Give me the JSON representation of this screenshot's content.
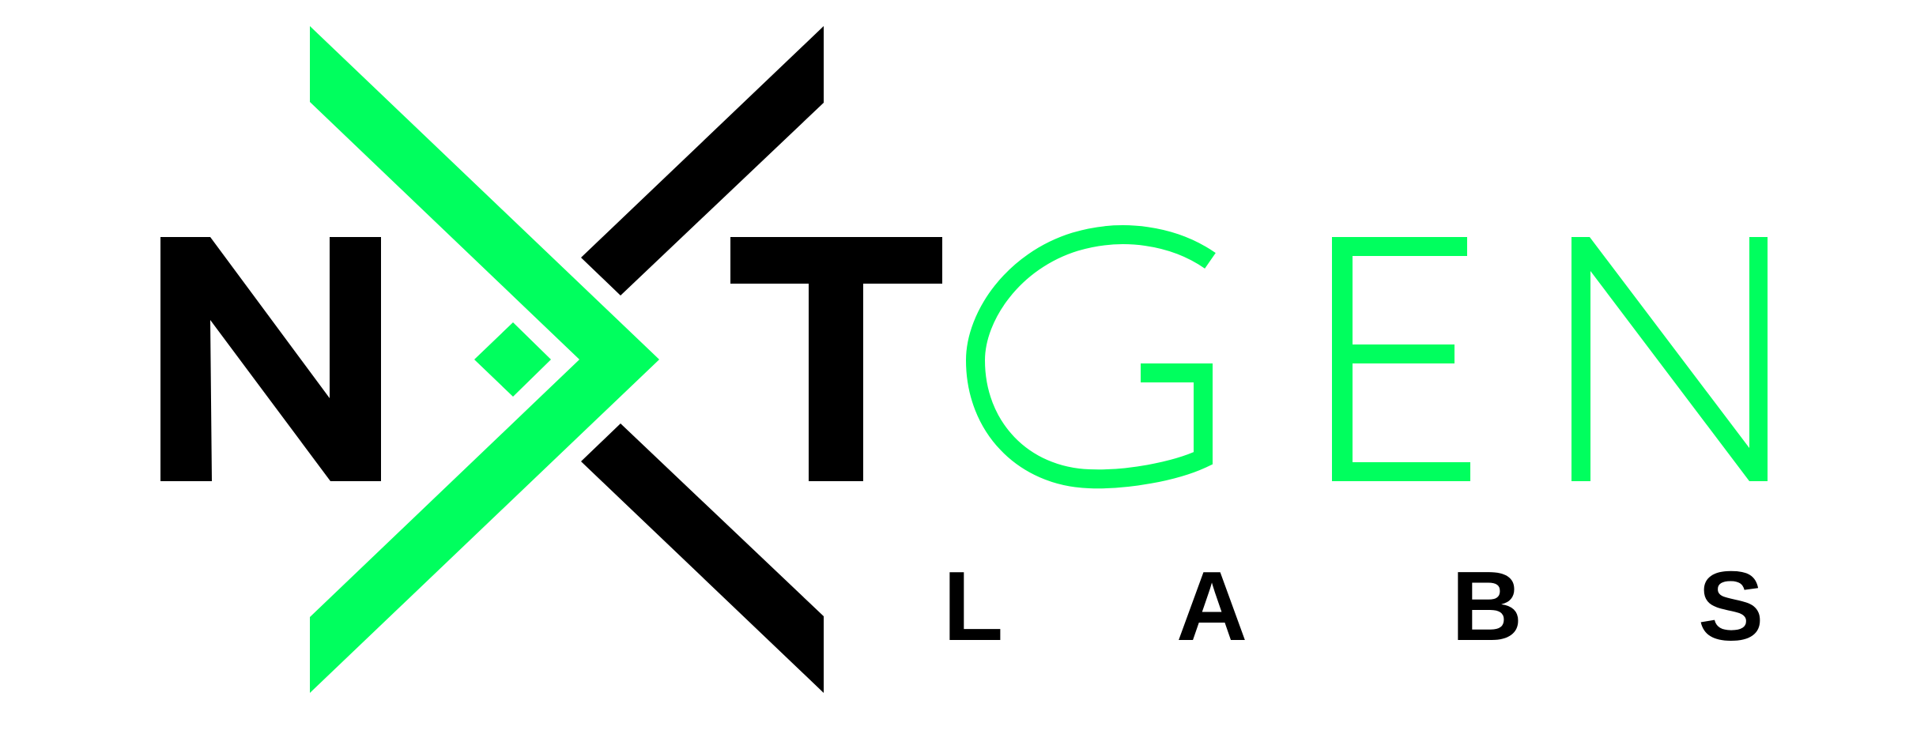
{
  "logo": {
    "letters": {
      "n": "N",
      "t": "T",
      "gen": [
        "G",
        "E",
        "N"
      ]
    },
    "subtitle": [
      "L",
      "A",
      "B",
      "S"
    ],
    "wordmark": "NXTGEN LABS",
    "colors": {
      "black": "#000000",
      "green": "#00FF5E",
      "background": "#FFFFFF"
    }
  }
}
